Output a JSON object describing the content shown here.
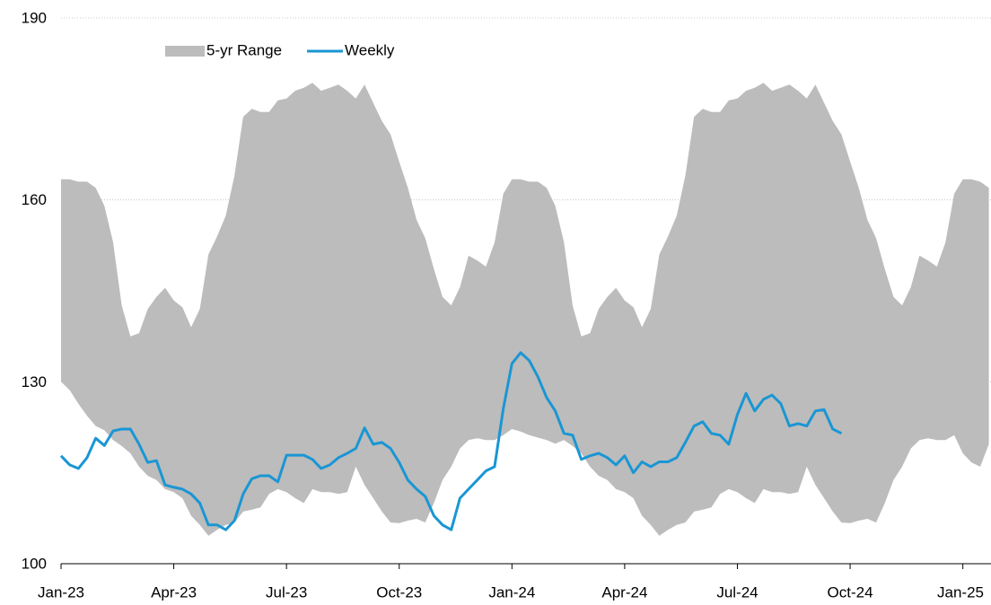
{
  "chart_data": {
    "type": "line",
    "categories": [
      "Jan-23",
      null,
      null,
      null,
      null,
      null,
      null,
      null,
      null,
      null,
      null,
      null,
      null,
      "Apr-23",
      null,
      null,
      null,
      null,
      null,
      null,
      null,
      null,
      null,
      null,
      null,
      null,
      "Jul-23",
      null,
      null,
      null,
      null,
      null,
      null,
      null,
      null,
      null,
      null,
      null,
      null,
      "Oct-23",
      null,
      null,
      null,
      null,
      null,
      null,
      null,
      null,
      null,
      null,
      null,
      null,
      "Jan-24",
      null,
      null,
      null,
      null,
      null,
      null,
      null,
      null,
      null,
      null,
      null,
      null,
      "Apr-24",
      null,
      null,
      null,
      null,
      null,
      null,
      null,
      null,
      null,
      null,
      null,
      null,
      "Jul-24",
      null,
      null,
      null,
      null,
      null,
      null,
      null,
      null,
      null,
      null,
      null,
      null,
      "Oct-24",
      null,
      null,
      null,
      null,
      null,
      null,
      null,
      null,
      null,
      null,
      null,
      null,
      "Jan-25",
      null,
      null,
      null
    ],
    "series": [
      {
        "name": "5-yr Range",
        "color": "#bcbcbc",
        "lower": [
          130,
          128.6,
          126.4,
          124.4,
          122.7,
          122,
          120.4,
          119.4,
          118.2,
          116,
          114.5,
          113.8,
          112.3,
          111.8,
          110.8,
          107.9,
          106.4,
          104.6,
          105.6,
          106.4,
          106.8,
          108.6,
          108.9,
          109.3,
          111.5,
          112.3,
          111.8,
          110.8,
          110,
          112.3,
          111.8,
          111.8,
          111.5,
          111.8,
          116,
          113,
          110.8,
          108.6,
          106.8,
          106.7,
          107.1,
          107.4,
          106.8,
          110,
          113.8,
          116,
          119,
          120.4,
          120.7,
          120.4,
          120.4,
          121.2,
          122.2,
          121.8,
          121.2,
          120.8,
          120.4,
          119.8,
          120.4,
          119.4,
          118.2,
          116,
          114.5,
          113.8,
          112.3,
          111.8,
          110.8,
          107.9,
          106.4,
          104.6,
          105.6,
          106.4,
          106.8,
          108.6,
          108.9,
          109.3,
          111.5,
          112.3,
          111.8,
          110.8,
          110,
          112.3,
          111.8,
          111.8,
          111.5,
          111.8,
          116,
          113,
          110.8,
          108.6,
          106.8,
          106.7,
          107.1,
          107.4,
          106.8,
          110,
          113.8,
          116,
          119,
          120.4,
          120.7,
          120.4,
          120.4,
          121.2,
          118.2,
          116.7,
          116,
          119.7
        ],
        "upper": [
          163.4,
          163.4,
          163,
          163,
          162,
          159,
          153,
          142.6,
          137.5,
          138,
          142,
          144,
          145.5,
          143.4,
          142.3,
          139,
          142,
          151,
          154,
          157.4,
          164,
          173.7,
          175,
          174.5,
          174.5,
          176.4,
          176.7,
          178,
          178.5,
          179.3,
          178,
          178.5,
          179,
          178,
          176.7,
          179,
          176,
          173,
          170.8,
          166.3,
          162,
          156.7,
          153.7,
          148.6,
          144,
          142.6,
          145.6,
          150.8,
          150,
          149,
          153,
          161,
          163.4,
          163.4,
          163,
          163,
          162,
          159,
          153,
          142.6,
          137.5,
          138,
          142,
          144,
          145.5,
          143.4,
          142.3,
          139,
          142,
          151,
          154,
          157.4,
          164,
          173.7,
          175,
          174.5,
          174.5,
          176.4,
          176.7,
          178,
          178.5,
          179.3,
          178,
          178.5,
          179,
          178,
          176.7,
          179,
          176,
          173,
          170.8,
          166.3,
          162,
          156.7,
          153.7,
          148.6,
          144,
          142.6,
          145.6,
          150.8,
          150,
          149,
          153,
          161,
          163.4,
          163.4,
          163,
          162
        ]
      },
      {
        "name": "Weekly",
        "color": "#1a96d4",
        "values": [
          117.8,
          116.3,
          115.7,
          117.5,
          120.7,
          119.5,
          121.9,
          122.2,
          122.2,
          119.7,
          116.7,
          117,
          113,
          112.6,
          112.3,
          111.5,
          110,
          106.4,
          106.4,
          105.6,
          107.1,
          111.5,
          114,
          114.5,
          114.5,
          113.5,
          117.9,
          117.9,
          117.9,
          117.2,
          115.7,
          116.3,
          117.5,
          118.2,
          119,
          122.4,
          119.7,
          120,
          119,
          116.7,
          113.8,
          112.3,
          111.1,
          107.9,
          106.4,
          105.6,
          110.8,
          112.3,
          113.8,
          115.3,
          116,
          125.6,
          133,
          134.8,
          133.5,
          130.8,
          127.4,
          125.2,
          121.5,
          121.2,
          117.2,
          117.8,
          118.2,
          117.5,
          116.3,
          117.8,
          115,
          116.8,
          116,
          116.8,
          116.8,
          117.5,
          120,
          122.7,
          123.4,
          121.5,
          121.2,
          119.7,
          124.6,
          128.1,
          125.2,
          127.1,
          127.8,
          126.4,
          122.7,
          123.1,
          122.7,
          125.2,
          125.4,
          122.2,
          121.5,
          null,
          null,
          null,
          null,
          null,
          null,
          null,
          null,
          null,
          null,
          null,
          null,
          null,
          null,
          null,
          null,
          null
        ]
      }
    ],
    "ylim": [
      100,
      190
    ],
    "yticks": [
      100,
      130,
      160,
      190
    ],
    "grid": true,
    "legend": "top-left"
  }
}
